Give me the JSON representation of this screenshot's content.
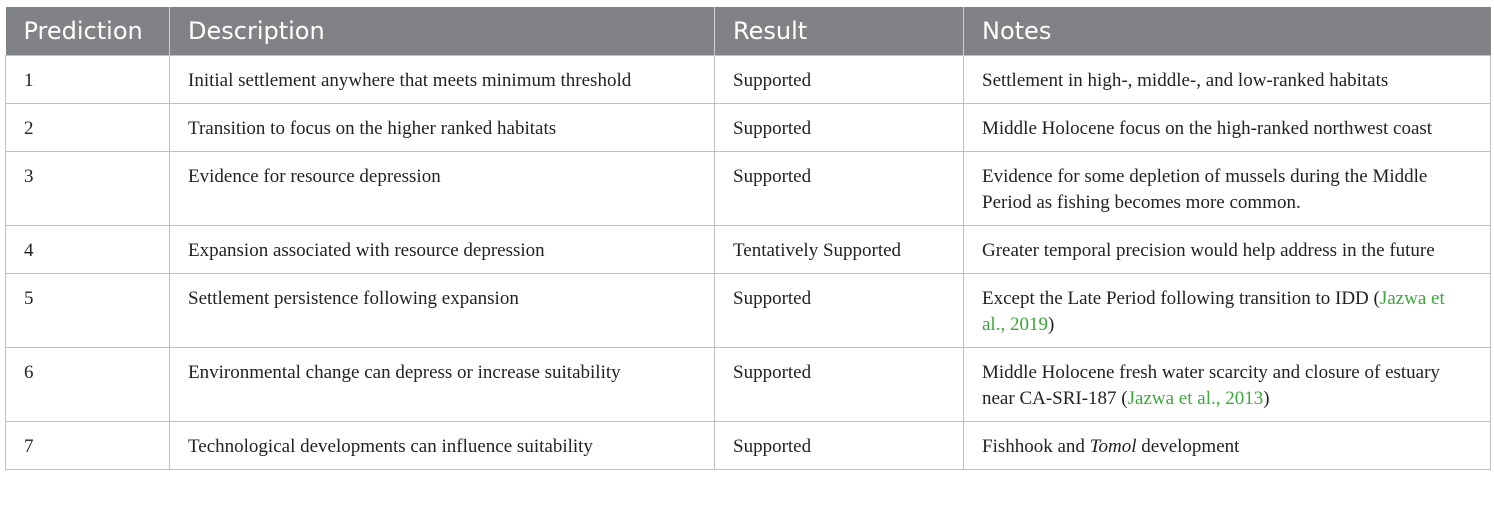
{
  "table": {
    "headers": [
      "Prediction",
      "Description",
      "Result",
      "Notes"
    ],
    "rows": [
      {
        "prediction": "1",
        "description": "Initial settlement anywhere that meets minimum threshold",
        "result": "Supported",
        "notes": "Settlement in high-, middle-, and low-ranked habitats"
      },
      {
        "prediction": "2",
        "description": "Transition to focus on the higher ranked habitats",
        "result": "Supported",
        "notes": "Middle Holocene focus on the high-ranked northwest coast"
      },
      {
        "prediction": "3",
        "description": "Evidence for resource depression",
        "result": "Supported",
        "notes": "Evidence for some depletion of mussels during the Middle Period as fishing becomes more common."
      },
      {
        "prediction": "4",
        "description": "Expansion associated with resource depression",
        "result": "Tentatively Supported",
        "notes": "Greater temporal precision would help address in the future"
      },
      {
        "prediction": "5",
        "description": "Settlement persistence following expansion",
        "result": "Supported",
        "notes_pre": "Except the Late Period following transition to IDD (",
        "notes_cite": "Jazwa et al., 2019",
        "notes_post": ")"
      },
      {
        "prediction": "6",
        "description": "Environmental change can depress or increase suitability",
        "result": "Supported",
        "notes_pre": "Middle Holocene fresh water scarcity and closure of estuary near CA-SRI-187 (",
        "notes_cite": "Jazwa et al., 2013",
        "notes_post": ")"
      },
      {
        "prediction": "7",
        "description": "Technological developments can influence suitability",
        "result": "Supported",
        "notes_pre": "Fishhook and ",
        "notes_italic": "Tomol",
        "notes_post": " development"
      }
    ]
  },
  "colors": {
    "header_bg": "#808285",
    "header_text": "#ffffff",
    "citation": "#3aa83a",
    "border": "#bfbfbf"
  }
}
